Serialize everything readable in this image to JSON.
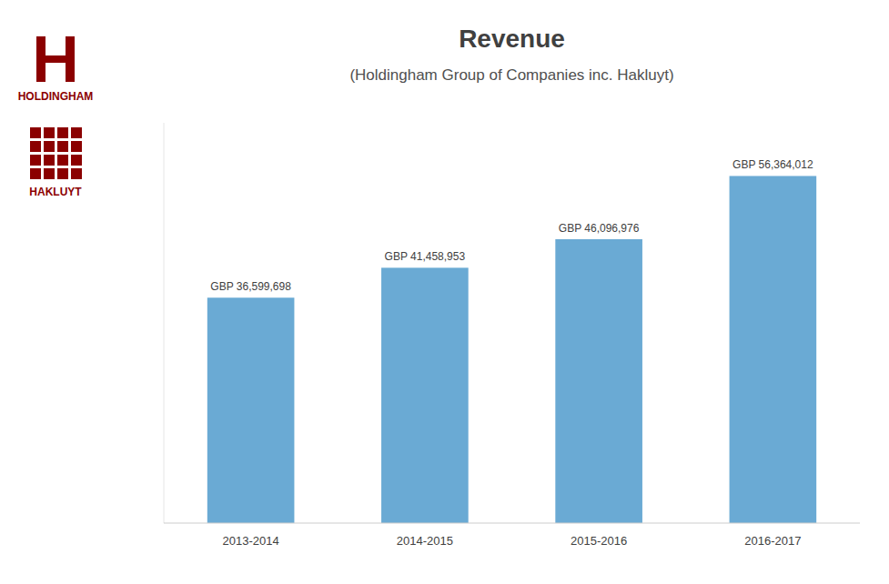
{
  "chart_data": {
    "type": "bar",
    "title": "Revenue",
    "subtitle": "(Holdingham Group of Companies inc. Hakluyt)",
    "categories": [
      "2013-2014",
      "2014-2015",
      "2015-2016",
      "2016-2017"
    ],
    "values": [
      36599698,
      41458953,
      46096976,
      56364012
    ],
    "value_labels": [
      "GBP 36,599,698",
      "GBP 41,458,953",
      "GBP 46,096,976",
      "GBP 56,364,012"
    ],
    "data_labels": true,
    "color": "#6aaad4",
    "ylim": [
      0,
      65000000
    ],
    "grid": false,
    "tick_labels": "x",
    "annotations": [
      {
        "text": "HOLDINGHAM",
        "color": "#8B0000"
      },
      {
        "text": "HAKLUYT",
        "color": "#8B0000"
      }
    ]
  }
}
